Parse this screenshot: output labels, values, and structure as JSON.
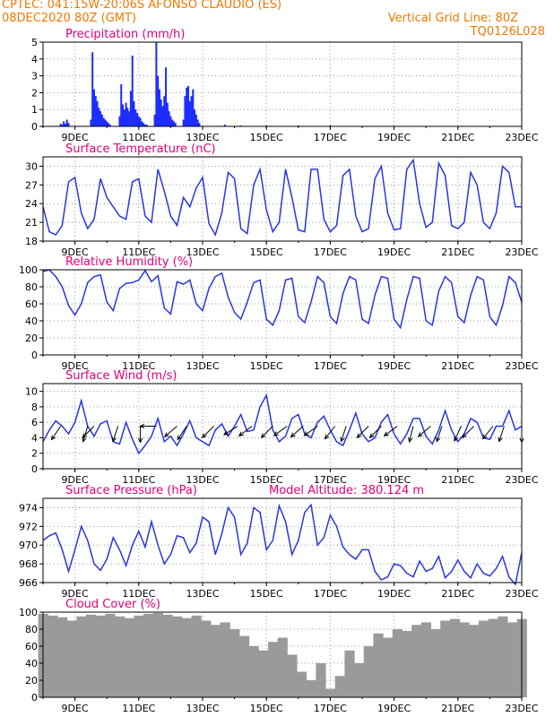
{
  "header": {
    "line1": "CPTEC:   041:15W-20:06S   AFONSO CLAUDIO (ES)",
    "line2_left": "08DEC2020 80Z (GMT)",
    "line2_right": "Vertical Grid Line: 80Z",
    "line3_right": "TQ0126L028"
  },
  "colors": {
    "line": "#2a35e0",
    "bar": "#1c2cff",
    "cloud": "#9a9a9a",
    "title": "#e0007a",
    "header": "#f07800",
    "grid": "#9a9a9a",
    "arrow": "#000000"
  },
  "x_axis": {
    "labels": [
      "9DEC",
      "11DEC",
      "13DEC",
      "15DEC",
      "17DEC",
      "19DEC",
      "21DEC",
      "23DEC"
    ],
    "label_days": [
      9,
      11,
      13,
      15,
      17,
      19,
      21,
      23
    ],
    "range_days": [
      8,
      23
    ]
  },
  "chart_data": [
    {
      "type": "bar",
      "title": "Precipitation (mm/h)",
      "ylim": [
        0,
        5
      ],
      "yticks": [
        0,
        1,
        2,
        3,
        4,
        5
      ],
      "x_days": [
        8.55,
        8.6,
        8.65,
        8.7,
        8.75,
        8.8,
        9.5,
        9.55,
        9.6,
        9.65,
        9.7,
        9.75,
        9.8,
        9.85,
        9.9,
        9.95,
        10.0,
        10.05,
        10.1,
        10.4,
        10.45,
        10.5,
        10.55,
        10.6,
        10.65,
        10.7,
        10.75,
        10.8,
        10.85,
        10.9,
        10.95,
        11.0,
        11.05,
        11.1,
        11.15,
        11.2,
        11.25,
        11.5,
        11.55,
        11.6,
        11.65,
        11.7,
        11.75,
        11.8,
        11.85,
        11.9,
        11.95,
        12.0,
        12.05,
        12.1,
        12.15,
        12.4,
        12.45,
        12.5,
        12.55,
        12.6,
        12.65,
        12.7,
        12.75,
        12.8,
        12.85,
        12.9,
        13.7,
        14.2,
        15.0,
        16.0,
        17.0
      ],
      "values": [
        0.15,
        0.1,
        0.3,
        0.15,
        0.4,
        0.2,
        0.4,
        4.4,
        2.2,
        1.8,
        1.5,
        1.1,
        0.9,
        0.7,
        0.5,
        0.4,
        0.3,
        0.2,
        0.1,
        0.6,
        2.5,
        1.3,
        1.0,
        1.4,
        1.1,
        0.9,
        2.1,
        4.2,
        1.5,
        1.0,
        0.8,
        0.6,
        0.5,
        0.3,
        0.2,
        0.1,
        0.1,
        0.7,
        5.0,
        3.0,
        2.2,
        1.6,
        1.2,
        1.8,
        3.5,
        1.4,
        0.9,
        0.6,
        0.4,
        0.3,
        0.2,
        0.4,
        1.8,
        2.3,
        2.4,
        1.5,
        1.8,
        2.2,
        1.0,
        0.7,
        0.4,
        0.2,
        0.1,
        0.05,
        0.05,
        0.05,
        0.05
      ]
    },
    {
      "type": "line",
      "title": "Surface Temperature (nC)",
      "ylim": [
        18,
        31.5
      ],
      "yticks": [
        18,
        21,
        24,
        27,
        30
      ],
      "x_days": [
        8.0,
        8.2,
        8.4,
        8.6,
        8.8,
        9.0,
        9.2,
        9.4,
        9.6,
        9.8,
        10.0,
        10.2,
        10.4,
        10.6,
        10.8,
        11.0,
        11.2,
        11.4,
        11.6,
        11.8,
        12.0,
        12.2,
        12.4,
        12.6,
        12.8,
        13.0,
        13.2,
        13.4,
        13.6,
        13.8,
        14.0,
        14.2,
        14.4,
        14.6,
        14.8,
        15.0,
        15.2,
        15.4,
        15.6,
        15.8,
        16.0,
        16.2,
        16.4,
        16.6,
        16.8,
        17.0,
        17.2,
        17.4,
        17.6,
        17.8,
        18.0,
        18.2,
        18.4,
        18.6,
        18.8,
        19.0,
        19.2,
        19.4,
        19.6,
        19.8,
        20.0,
        20.2,
        20.4,
        20.6,
        20.8,
        21.0,
        21.2,
        21.4,
        21.6,
        21.8,
        22.0,
        22.2,
        22.4,
        22.6,
        22.8,
        23.0
      ],
      "values": [
        23.5,
        19.5,
        19.0,
        20.5,
        27.5,
        28.2,
        22.5,
        20.0,
        21.5,
        28.0,
        25.0,
        23.5,
        22.0,
        21.5,
        27.5,
        28.0,
        22.0,
        21.0,
        29.5,
        26.0,
        22.0,
        20.5,
        25.0,
        23.5,
        26.5,
        28.2,
        20.8,
        19.0,
        22.5,
        29.0,
        28.0,
        20.0,
        19.2,
        27.0,
        29.5,
        23.0,
        19.5,
        21.0,
        29.5,
        25.0,
        19.8,
        19.5,
        29.5,
        29.5,
        21.5,
        19.5,
        20.5,
        28.5,
        29.5,
        22.0,
        19.5,
        20.0,
        28.0,
        30.0,
        22.5,
        19.8,
        20.0,
        29.5,
        31.0,
        24.0,
        20.2,
        21.0,
        30.5,
        28.5,
        20.5,
        20.0,
        21.0,
        29.0,
        27.0,
        21.0,
        20.0,
        22.5,
        30.0,
        29.0,
        23.5,
        23.5
      ]
    },
    {
      "type": "line",
      "title": "Relative Humidity (%)",
      "ylim": [
        0,
        100
      ],
      "yticks": [
        0,
        20,
        40,
        60,
        80,
        100
      ],
      "x_days": [
        8.0,
        8.2,
        8.4,
        8.6,
        8.8,
        9.0,
        9.2,
        9.4,
        9.6,
        9.8,
        10.0,
        10.2,
        10.4,
        10.6,
        10.8,
        11.0,
        11.2,
        11.4,
        11.6,
        11.8,
        12.0,
        12.2,
        12.4,
        12.6,
        12.8,
        13.0,
        13.2,
        13.4,
        13.6,
        13.8,
        14.0,
        14.2,
        14.4,
        14.6,
        14.8,
        15.0,
        15.2,
        15.4,
        15.6,
        15.8,
        16.0,
        16.2,
        16.4,
        16.6,
        16.8,
        17.0,
        17.2,
        17.4,
        17.6,
        17.8,
        18.0,
        18.2,
        18.4,
        18.6,
        18.8,
        19.0,
        19.2,
        19.4,
        19.6,
        19.8,
        20.0,
        20.2,
        20.4,
        20.6,
        20.8,
        21.0,
        21.2,
        21.4,
        21.6,
        21.8,
        22.0,
        22.2,
        22.4,
        22.6,
        22.8,
        23.0
      ],
      "values": [
        98,
        100,
        92,
        80,
        58,
        47,
        60,
        85,
        92,
        94,
        62,
        52,
        78,
        84,
        85,
        88,
        99,
        86,
        93,
        55,
        48,
        86,
        83,
        88,
        60,
        52,
        78,
        92,
        96,
        68,
        50,
        42,
        62,
        85,
        88,
        42,
        35,
        52,
        88,
        90,
        45,
        38,
        62,
        92,
        85,
        45,
        37,
        72,
        92,
        88,
        42,
        37,
        70,
        92,
        90,
        42,
        32,
        65,
        92,
        90,
        40,
        35,
        75,
        92,
        85,
        45,
        38,
        70,
        92,
        88,
        45,
        35,
        58,
        92,
        85,
        62
      ],
      "ylabel": ""
    },
    {
      "type": "line",
      "title": "Surface Wind (m/s)",
      "ylim": [
        0,
        11
      ],
      "yticks": [
        0,
        2,
        4,
        6,
        8,
        10
      ],
      "x_days": [
        8.0,
        8.2,
        8.4,
        8.6,
        8.8,
        9.0,
        9.2,
        9.4,
        9.6,
        9.8,
        10.0,
        10.2,
        10.4,
        10.6,
        10.8,
        11.0,
        11.2,
        11.4,
        11.6,
        11.8,
        12.0,
        12.2,
        12.4,
        12.6,
        12.8,
        13.0,
        13.2,
        13.4,
        13.6,
        13.8,
        14.0,
        14.2,
        14.4,
        14.6,
        14.8,
        15.0,
        15.2,
        15.4,
        15.6,
        15.8,
        16.0,
        16.2,
        16.4,
        16.6,
        16.8,
        17.0,
        17.2,
        17.4,
        17.6,
        17.8,
        18.0,
        18.2,
        18.4,
        18.6,
        18.8,
        19.0,
        19.2,
        19.4,
        19.6,
        19.8,
        20.0,
        20.2,
        20.4,
        20.6,
        20.8,
        21.0,
        21.2,
        21.4,
        21.6,
        21.8,
        22.0,
        22.2,
        22.4,
        22.6,
        22.8,
        23.0
      ],
      "values": [
        3.5,
        5.0,
        6.2,
        5.5,
        4.5,
        6.0,
        8.8,
        5.5,
        4.2,
        5.8,
        6.2,
        3.5,
        3.2,
        6.0,
        3.8,
        2.0,
        3.0,
        4.2,
        6.5,
        3.5,
        4.2,
        3.0,
        4.5,
        6.2,
        4.0,
        3.5,
        3.0,
        5.0,
        5.8,
        4.2,
        5.5,
        7.0,
        4.8,
        5.0,
        8.0,
        9.5,
        5.0,
        3.5,
        4.2,
        6.5,
        7.0,
        4.5,
        4.0,
        6.0,
        6.8,
        5.0,
        3.5,
        3.0,
        5.0,
        7.2,
        4.5,
        3.5,
        4.0,
        6.0,
        7.0,
        4.5,
        3.2,
        4.5,
        6.5,
        6.5,
        4.2,
        3.2,
        5.0,
        7.5,
        5.0,
        3.5,
        4.5,
        6.5,
        6.0,
        4.0,
        3.8,
        5.5,
        5.5,
        7.5,
        5.0,
        5.5
      ],
      "wind_vectors_days": [
        8.55,
        9.4,
        9.6,
        10.35,
        11.05,
        11.55,
        12.2,
        12.5,
        13.35,
        14.1,
        14.55,
        15.2,
        15.65,
        16.15,
        16.6,
        17.15,
        17.5,
        18.2,
        18.6,
        19.1,
        19.6,
        20.15,
        20.5,
        21.1,
        21.5,
        22.1,
        22.45,
        23.0
      ],
      "wind_vectors_u": [
        0.6,
        0.3,
        0.5,
        0.3,
        0.0,
        0.6,
        0.7,
        0.6,
        0.6,
        1.6,
        0.8,
        0.8,
        1.4,
        0.9,
        0.7,
        0.4,
        0.3,
        0.3,
        0.5,
        0.8,
        0.2,
        0.6,
        0.3,
        0.4,
        0.5,
        0.4,
        0.3,
        0.0
      ],
      "wind_vectors_v": [
        0.9,
        1.0,
        0.5,
        0.9,
        1.0,
        0.0,
        0.6,
        0.9,
        0.6,
        1.0,
        0.6,
        0.8,
        1.0,
        0.8,
        0.5,
        0.5,
        0.9,
        0.3,
        0.5,
        0.6,
        0.8,
        0.5,
        0.9,
        0.9,
        0.5,
        0.5,
        0.9,
        0.3
      ]
    },
    {
      "type": "line",
      "title": "Surface Pressure (hPa)",
      "ylim": [
        966,
        975
      ],
      "yticks": [
        966,
        968,
        970,
        972,
        974
      ],
      "x_days": [
        8.0,
        8.2,
        8.4,
        8.6,
        8.8,
        9.0,
        9.2,
        9.4,
        9.6,
        9.8,
        10.0,
        10.2,
        10.4,
        10.6,
        10.8,
        11.0,
        11.2,
        11.4,
        11.6,
        11.8,
        12.0,
        12.2,
        12.4,
        12.6,
        12.8,
        13.0,
        13.2,
        13.4,
        13.6,
        13.8,
        14.0,
        14.2,
        14.4,
        14.6,
        14.8,
        15.0,
        15.2,
        15.4,
        15.6,
        15.8,
        16.0,
        16.2,
        16.4,
        16.6,
        16.8,
        17.0,
        17.2,
        17.4,
        17.6,
        17.8,
        18.0,
        18.2,
        18.4,
        18.6,
        18.8,
        19.0,
        19.2,
        19.4,
        19.6,
        19.8,
        20.0,
        20.2,
        20.4,
        20.6,
        20.8,
        21.0,
        21.2,
        21.4,
        21.6,
        21.8,
        22.0,
        22.2,
        22.4,
        22.6,
        22.8,
        23.0
      ],
      "values": [
        970.5,
        971.0,
        971.3,
        969.5,
        967.2,
        969.5,
        972.0,
        970.5,
        968.0,
        967.3,
        968.5,
        970.8,
        969.5,
        967.8,
        970.0,
        971.5,
        969.8,
        972.5,
        970.0,
        968.0,
        969.0,
        971.0,
        970.8,
        969.2,
        970.2,
        973.0,
        972.5,
        969.0,
        971.2,
        974.0,
        973.0,
        969.0,
        970.2,
        974.0,
        973.5,
        969.5,
        970.5,
        974.2,
        972.5,
        969.0,
        970.5,
        973.5,
        974.3,
        970.0,
        970.8,
        973.2,
        972.0,
        969.8,
        969.0,
        968.5,
        969.5,
        969.5,
        967.2,
        966.3,
        966.6,
        968.0,
        967.8,
        967.0,
        966.6,
        968.3,
        967.2,
        967.5,
        968.8,
        966.5,
        967.2,
        968.4,
        967.2,
        966.5,
        968.0,
        967.0,
        966.7,
        967.5,
        968.8,
        966.6,
        965.8,
        969.2
      ],
      "annotation": "Model Altitude: 380.124 m"
    },
    {
      "type": "area",
      "title": "Cloud Cover (%)",
      "ylim": [
        0,
        100
      ],
      "yticks": [
        0,
        20,
        40,
        60,
        80,
        100
      ],
      "x_days": [
        8.0,
        8.3,
        8.6,
        8.9,
        9.2,
        9.5,
        9.8,
        10.1,
        10.4,
        10.7,
        11.0,
        11.3,
        11.6,
        11.9,
        12.2,
        12.5,
        12.8,
        13.1,
        13.4,
        13.7,
        14.0,
        14.3,
        14.6,
        14.9,
        15.2,
        15.5,
        15.8,
        16.1,
        16.4,
        16.7,
        17.0,
        17.3,
        17.6,
        17.9,
        18.2,
        18.5,
        18.8,
        19.1,
        19.4,
        19.7,
        20.0,
        20.3,
        20.6,
        20.9,
        21.2,
        21.5,
        21.8,
        22.1,
        22.4,
        22.7,
        23.0
      ],
      "values": [
        98,
        96,
        94,
        90,
        95,
        97,
        96,
        98,
        95,
        93,
        96,
        98,
        99,
        97,
        95,
        93,
        96,
        90,
        85,
        88,
        80,
        72,
        60,
        55,
        65,
        70,
        50,
        30,
        20,
        40,
        10,
        25,
        55,
        40,
        60,
        75,
        70,
        80,
        78,
        85,
        88,
        80,
        90,
        92,
        88,
        85,
        90,
        92,
        95,
        88,
        92
      ]
    }
  ]
}
